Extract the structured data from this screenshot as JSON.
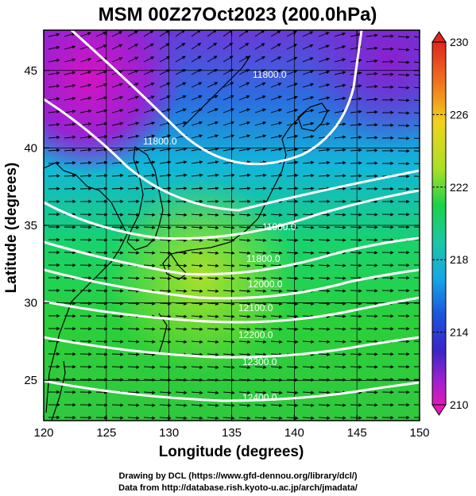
{
  "title": "MSM 00Z27Oct2023 (200.0hPa)",
  "xlabel": "Longitude (degrees)",
  "ylabel": "Latitude  (degrees)",
  "x_ticks": [
    "120",
    "125",
    "130",
    "135",
    "140",
    "145",
    "150"
  ],
  "y_ticks": [
    "25",
    "30",
    "35",
    "40",
    "45"
  ],
  "colorbar": {
    "ticks": [
      "230",
      "226",
      "222",
      "218",
      "214",
      "210"
    ],
    "min": 210,
    "max": 230
  },
  "contour_labels": [
    "11800.0",
    "11800.0",
    "11900.0",
    "11800.0",
    "12000.0",
    "12100.0",
    "12200.0",
    "12300.0",
    "12400.0"
  ],
  "footer": {
    "line1": "Drawing by DCL (https://www.gfd-dennou.org/library/dcl/)",
    "line2": "Data from http://database.rish.kyoto-u.ac.jp/arch/jmadata/"
  },
  "chart_data": {
    "type": "heatmap",
    "title": "MSM 00Z27Oct2023 (200.0hPa)",
    "xlabel": "Longitude (degrees)",
    "ylabel": "Latitude  (degrees)",
    "xlim": [
      120,
      150
    ],
    "ylim": [
      22.4,
      47.6
    ],
    "colorbar_range": [
      210,
      230
    ],
    "contour_levels": [
      11800,
      11900,
      12000,
      12100,
      12200,
      12300,
      12400
    ],
    "wind_vectors": "westerly jet, anticyclonic curvature over Japan"
  }
}
